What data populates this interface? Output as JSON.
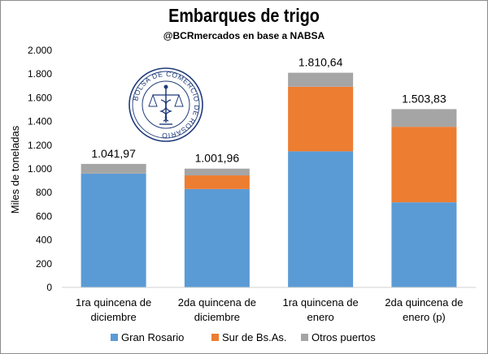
{
  "chart_data": {
    "type": "bar",
    "stacked": true,
    "title": "Embarques de trigo",
    "subtitle": "@BCRmercados en base a NABSA",
    "ylabel": "Miles de toneladas",
    "xlabel": "",
    "ylim": [
      0,
      2000
    ],
    "y_ticks": [
      0,
      200,
      400,
      600,
      800,
      1000,
      1200,
      1400,
      1600,
      1800,
      2000
    ],
    "y_tick_labels": [
      "0",
      "200",
      "400",
      "600",
      "800",
      "1.000",
      "1.200",
      "1.400",
      "1.600",
      "1.800",
      "2.000"
    ],
    "grid": false,
    "legend_position": "bottom",
    "categories": [
      [
        "1ra quincena de",
        "diciembre"
      ],
      [
        "2da quincena de",
        "diciembre"
      ],
      [
        "1ra quincena de",
        "enero"
      ],
      [
        "2da quincena de",
        "enero (p)"
      ]
    ],
    "series": [
      {
        "name": "Gran Rosario",
        "color": "#5b9bd5",
        "values": [
          960,
          830,
          1148,
          718
        ]
      },
      {
        "name": "Sur de Bs.As.",
        "color": "#ed7d31",
        "values": [
          0,
          115,
          545,
          637
        ]
      },
      {
        "name": "Otros puertos",
        "color": "#a5a5a5",
        "values": [
          82,
          57,
          118,
          149
        ]
      }
    ],
    "totals": [
      1041.97,
      1001.96,
      1810.64,
      1503.83
    ],
    "total_labels": [
      "1.041,97",
      "1.001,96",
      "1.810,64",
      "1.503,83"
    ],
    "logo": {
      "icon": "bolsa-de-comercio-de-rosario-seal",
      "text": "BOLSA DE COMERCIO DE ROSARIO"
    }
  }
}
